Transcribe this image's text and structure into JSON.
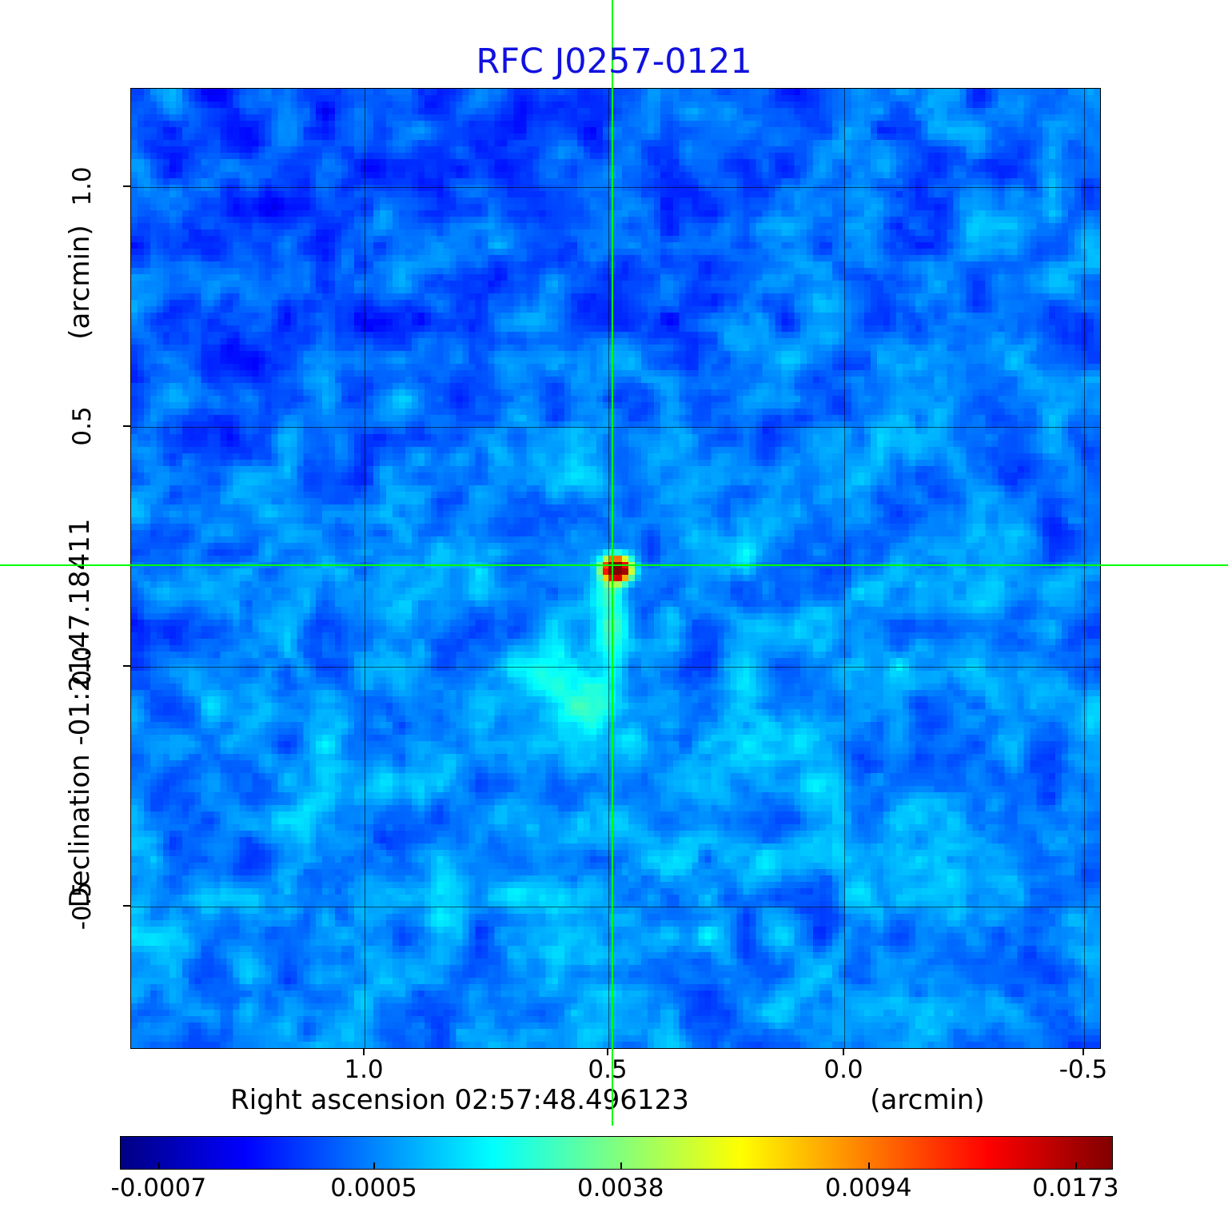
{
  "title": {
    "text": "RFC J0257-0121",
    "color": "#1111e0"
  },
  "axes": {
    "x": {
      "label": "Right ascension  02:57:48.496123",
      "unit": "(arcmin)",
      "tick_labels": [
        "1.0",
        "0.5",
        "0.0",
        "-0.5"
      ]
    },
    "y": {
      "label": "Declination  -01:21:47.18411",
      "unit": "(arcmin)",
      "tick_labels": [
        "1.0",
        "0.5",
        "0.0",
        "-0.5"
      ]
    }
  },
  "colorbar": {
    "tick_labels": [
      "-0.0007",
      "0.0005",
      "0.0038",
      "0.0094",
      "0.0173"
    ],
    "colormap": "jet"
  },
  "colors": {
    "title_blue": "#1111e0",
    "crosshair_green": "#00ff00"
  },
  "chart_data": {
    "type": "heatmap",
    "title": "RFC J0257-0121",
    "xlabel": "Right ascension  02:57:48.496123 (arcmin)",
    "ylabel": "Declination  -01:21:47.18411 (arcmin)",
    "x_ticks": [
      1.0,
      0.5,
      0.0,
      -0.5
    ],
    "y_ticks": [
      1.0,
      0.5,
      0.0,
      -0.5
    ],
    "xlim": [
      1.49,
      -0.53
    ],
    "ylim": [
      -0.8,
      1.21
    ],
    "x_axis_reversed": true,
    "grid": true,
    "colormap": "jet",
    "colorbar_ticks": [
      -0.0007,
      0.0005,
      0.0038,
      0.0094,
      0.0173
    ],
    "intensity_range": [
      -0.0007,
      0.0173
    ],
    "background_noise_level": 0.0005,
    "peak_source": {
      "value": 0.0173,
      "x_arcmin": 0.49,
      "y_arcmin": 0.21,
      "description": "compact bright source, red/orange core with yellow ring at crosshair position"
    },
    "crosshair_arcmin": {
      "x": 0.49,
      "y": 0.21
    },
    "features": [
      "blue low-level noise field over whole map",
      "faint cyan extended emission elongated south of the peak between dec offset 0.1 and -0.1",
      "slightly darker blue noise in upper-left quadrant"
    ]
  }
}
